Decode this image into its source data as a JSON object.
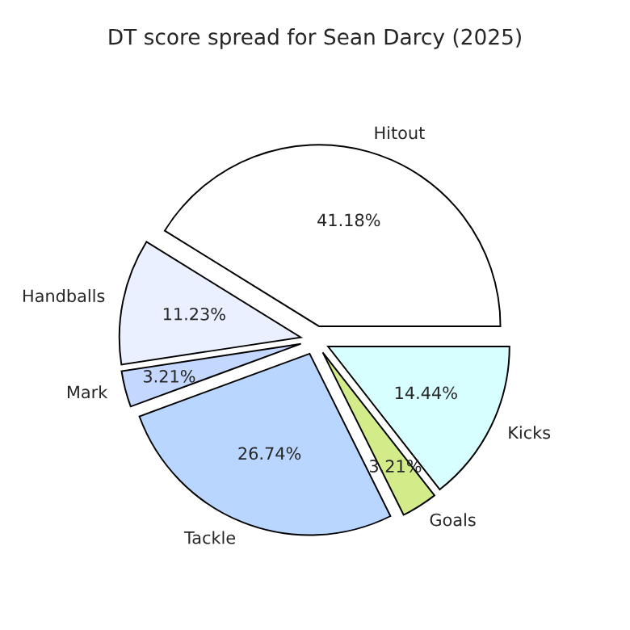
{
  "chart_data": {
    "type": "pie",
    "title": "DT score spread for Sean Darcy (2025)",
    "categories": [
      "Hitout",
      "Handballs",
      "Mark",
      "Tackle",
      "Goals",
      "Kicks"
    ],
    "values": [
      41.18,
      11.23,
      3.21,
      26.74,
      3.21,
      14.44
    ],
    "value_labels": [
      "41.18%",
      "11.23%",
      "3.21%",
      "26.74%",
      "3.21%",
      "14.44%"
    ],
    "colors": [
      "#ffffff",
      "#eaf0ff",
      "#c4d8ff",
      "#b8d6ff",
      "#d2ec8a",
      "#d8ffff"
    ]
  }
}
